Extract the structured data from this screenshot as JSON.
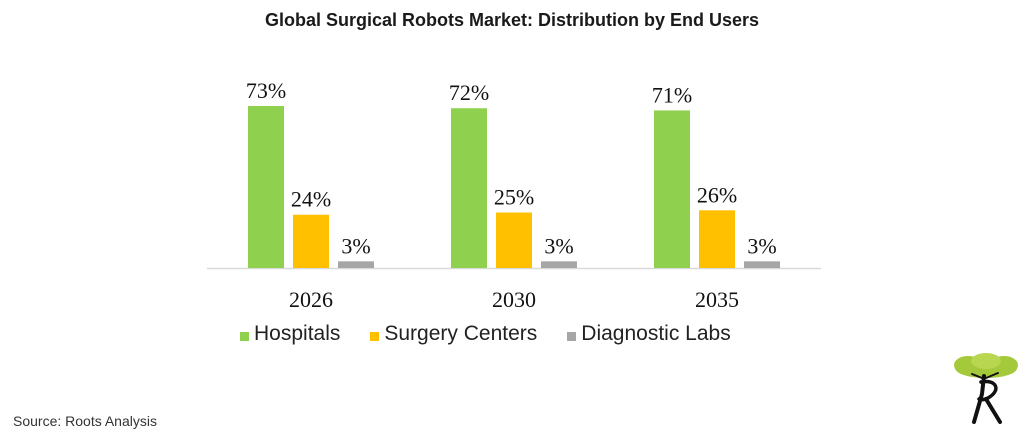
{
  "title": "Global Surgical Robots Market: Distribution by End Users",
  "source": "Source: Roots Analysis",
  "colors": {
    "hospitals": "#8fd14f",
    "surgery_centers": "#ffc000",
    "diagnostic_labs": "#a6a6a6",
    "logo_canopy": "#a4c93a",
    "logo_mark": "#111111"
  },
  "legend": [
    {
      "label": "Hospitals",
      "color": "#8fd14f"
    },
    {
      "label": "Surgery Centers",
      "color": "#ffc000"
    },
    {
      "label": "Diagnostic Labs",
      "color": "#a6a6a6"
    }
  ],
  "chart_data": {
    "type": "bar",
    "title": "Global Surgical Robots Market: Distribution by End Users",
    "categories": [
      "2026",
      "2030",
      "2035"
    ],
    "series": [
      {
        "name": "Hospitals",
        "values": [
          73,
          72,
          71
        ],
        "labels": [
          "73%",
          "72%",
          "71%"
        ],
        "color": "#8fd14f"
      },
      {
        "name": "Surgery Centers",
        "values": [
          24,
          25,
          26
        ],
        "labels": [
          "24%",
          "25%",
          "26%"
        ],
        "color": "#ffc000"
      },
      {
        "name": "Diagnostic Labs",
        "values": [
          3,
          3,
          3
        ],
        "labels": [
          "3%",
          "3%",
          "3%"
        ],
        "color": "#a6a6a6"
      }
    ],
    "xlabel": "",
    "ylabel": "",
    "ylim": [
      0,
      100
    ],
    "grid": false,
    "legend_position": "bottom",
    "value_unit": "%"
  }
}
